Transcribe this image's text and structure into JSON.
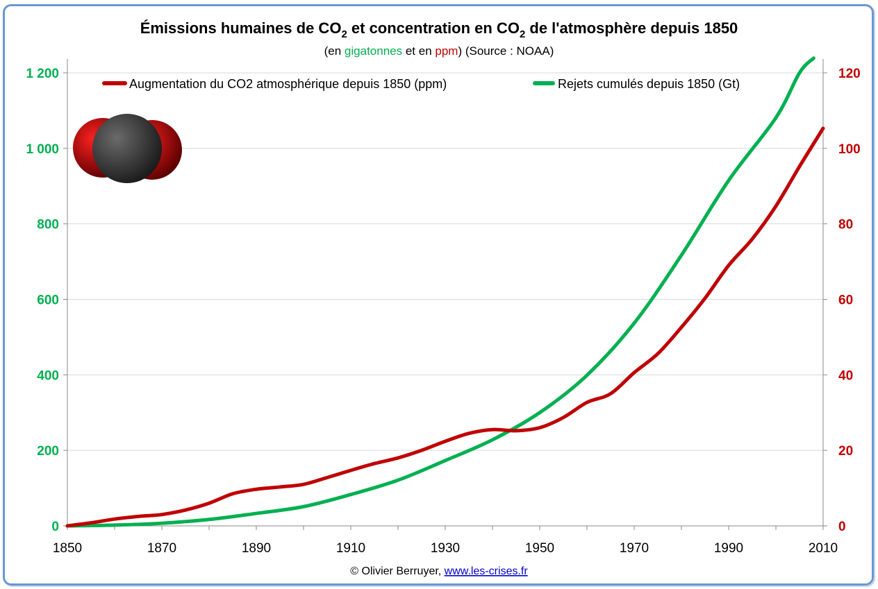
{
  "chart_data": {
    "type": "line",
    "title_parts": [
      "Émissions humaines de CO",
      "2",
      " et concentration en CO",
      "2",
      " de l'atmosphère depuis 1850"
    ],
    "subtitle_parts": [
      "(en ",
      "gigatonnes",
      " et en ",
      "ppm",
      ") (Source : NOAA)"
    ],
    "xlim": [
      1850,
      2010
    ],
    "x_ticks": [
      "1850",
      "1870",
      "1890",
      "1910",
      "1930",
      "1950",
      "1970",
      "1990",
      "2010"
    ],
    "y_left": {
      "range": [
        0,
        1200
      ],
      "ticks": [
        "0",
        "200",
        "400",
        "600",
        "800",
        "1 000",
        "1 200"
      ],
      "color": "#00b050"
    },
    "y_right": {
      "range": [
        0,
        120
      ],
      "ticks": [
        "0",
        "20",
        "40",
        "60",
        "80",
        "100",
        "120"
      ],
      "color": "#c00000"
    },
    "grid": true,
    "legend_position": "top",
    "series": [
      {
        "name": "Augmentation du CO2 atmosphérique depuis 1850 (ppm)",
        "axis": "right",
        "color": "#c00000",
        "x": [
          1850,
          1855,
          1860,
          1865,
          1870,
          1875,
          1880,
          1885,
          1890,
          1895,
          1900,
          1905,
          1910,
          1915,
          1920,
          1925,
          1930,
          1935,
          1940,
          1945,
          1950,
          1955,
          1960,
          1965,
          1970,
          1975,
          1980,
          1985,
          1990,
          1995,
          2000,
          2005,
          2010
        ],
        "y": [
          0,
          0.8,
          1.8,
          2.5,
          3,
          4.2,
          6,
          8.5,
          9.7,
          10.3,
          11,
          12.8,
          14.7,
          16.5,
          18,
          20,
          22.4,
          24.5,
          25.5,
          25.2,
          26,
          28.7,
          32.7,
          35,
          40.6,
          45.6,
          52.6,
          60.3,
          69,
          76,
          84.7,
          95.2,
          105.3
        ]
      },
      {
        "name": "Rejets cumulés depuis 1850 (Gt)",
        "axis": "left",
        "color": "#00b050",
        "x": [
          1850,
          1860,
          1870,
          1880,
          1890,
          1900,
          1910,
          1920,
          1930,
          1940,
          1950,
          1960,
          1970,
          1980,
          1990,
          2000,
          2005,
          2008
        ],
        "y": [
          0,
          2,
          7,
          17,
          33,
          51,
          83,
          121,
          173,
          228,
          300,
          399,
          537,
          717,
          915,
          1081,
          1200,
          1239
        ]
      }
    ]
  },
  "footer": {
    "credit": "© Olivier Berruyer, ",
    "link": "www.les-crises.fr"
  }
}
